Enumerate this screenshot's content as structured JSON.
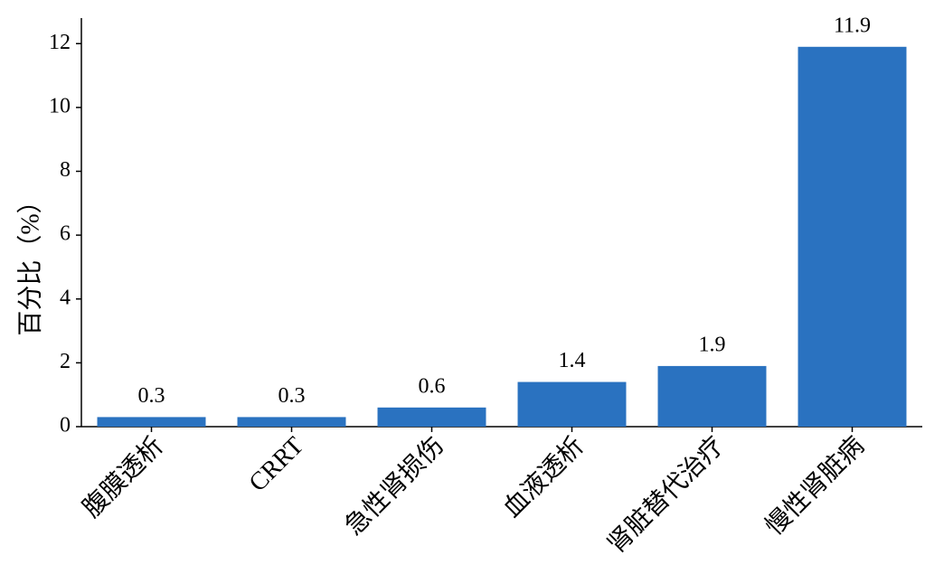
{
  "chart_data": {
    "type": "bar",
    "y_label": "百分比（%）",
    "categories": [
      "腹膜透析",
      "CRRT",
      "急性肾损伤",
      "血液透析",
      "肾脏替代治疗",
      "慢性肾脏病"
    ],
    "values": [
      0.3,
      0.3,
      0.6,
      1.4,
      1.9,
      11.9
    ],
    "color": "#2a72c0",
    "ylim": [
      0,
      12.8
    ],
    "yticks": [
      0,
      2,
      4,
      6,
      8,
      10,
      12
    ],
    "grid": false
  }
}
